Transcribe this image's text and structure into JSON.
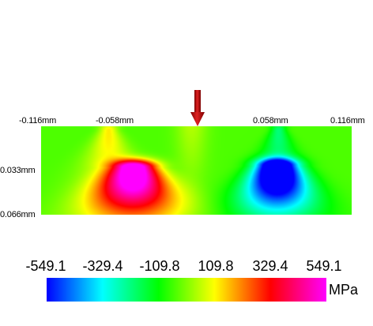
{
  "x_ticks": [
    "-0.116mm",
    "-0.058mm",
    "0.058mm",
    "0.116mm"
  ],
  "y_ticks": [
    "0.033mm",
    "0.066mm"
  ],
  "colorbar": {
    "labels": [
      "-549.1",
      "-329.4",
      "-109.8",
      "109.8",
      "329.4",
      "549.1"
    ],
    "unit": "MPa",
    "colors": [
      "#0000ff",
      "#00ffff",
      "#00ff00",
      "#ffff00",
      "#ff0000",
      "#ff00ff"
    ]
  },
  "arrow_color": "#cc1111",
  "arrow_icon": "load-arrow-down-icon"
}
